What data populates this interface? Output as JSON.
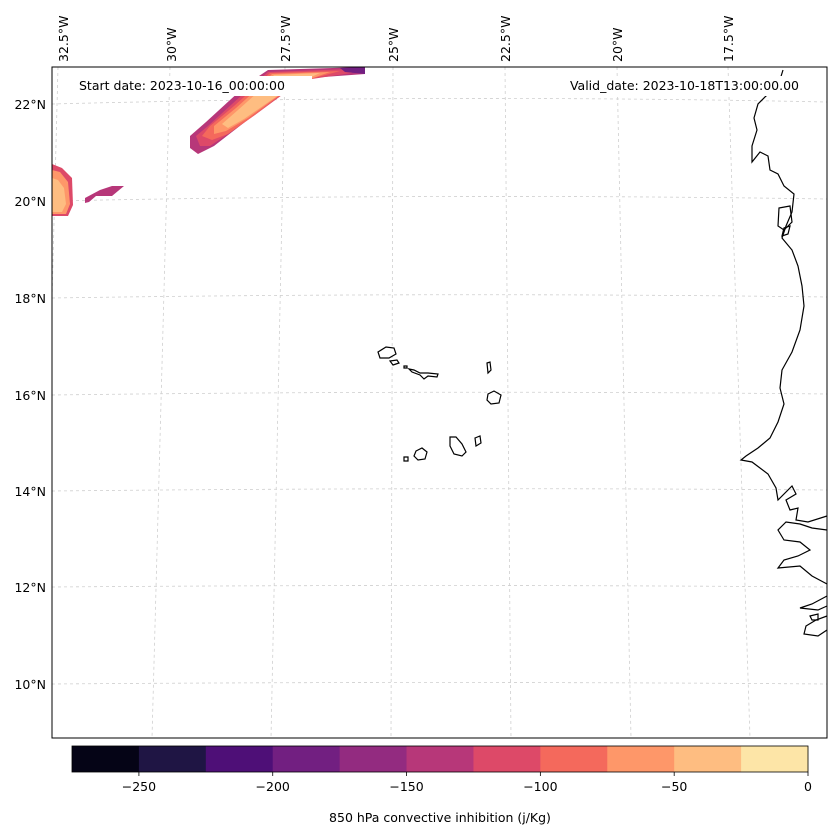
{
  "map": {
    "start_date": "Start date: 2023-10-16_00:00:00",
    "valid_date": "Valid_date: 2023-10-18T13:00:00.00",
    "lon_labels": [
      "32.5°W",
      "30°W",
      "27.5°W",
      "25°W",
      "22.5°W",
      "20°W",
      "17.5°W"
    ],
    "lat_labels": [
      "22°N",
      "20°N",
      "18°N",
      "16°N",
      "14°N",
      "12°N",
      "10°N"
    ],
    "regions": [
      "Cape Verde Islands",
      "West African coast"
    ]
  },
  "colorbar": {
    "label": "850 hPa convective inhibition (j/Kg)",
    "ticks": [
      "−250",
      "−200",
      "−150",
      "−100",
      "−50",
      "0"
    ],
    "levels": [
      -275,
      -250,
      -225,
      -200,
      -175,
      -150,
      -125,
      -100,
      -75,
      -50,
      -25,
      0
    ],
    "colors": [
      "#050416",
      "#1f1544",
      "#4e0f77",
      "#721f81",
      "#932b80",
      "#b73779",
      "#dd4968",
      "#f4695c",
      "#fe9769",
      "#febd81",
      "#fde5a7"
    ]
  }
}
